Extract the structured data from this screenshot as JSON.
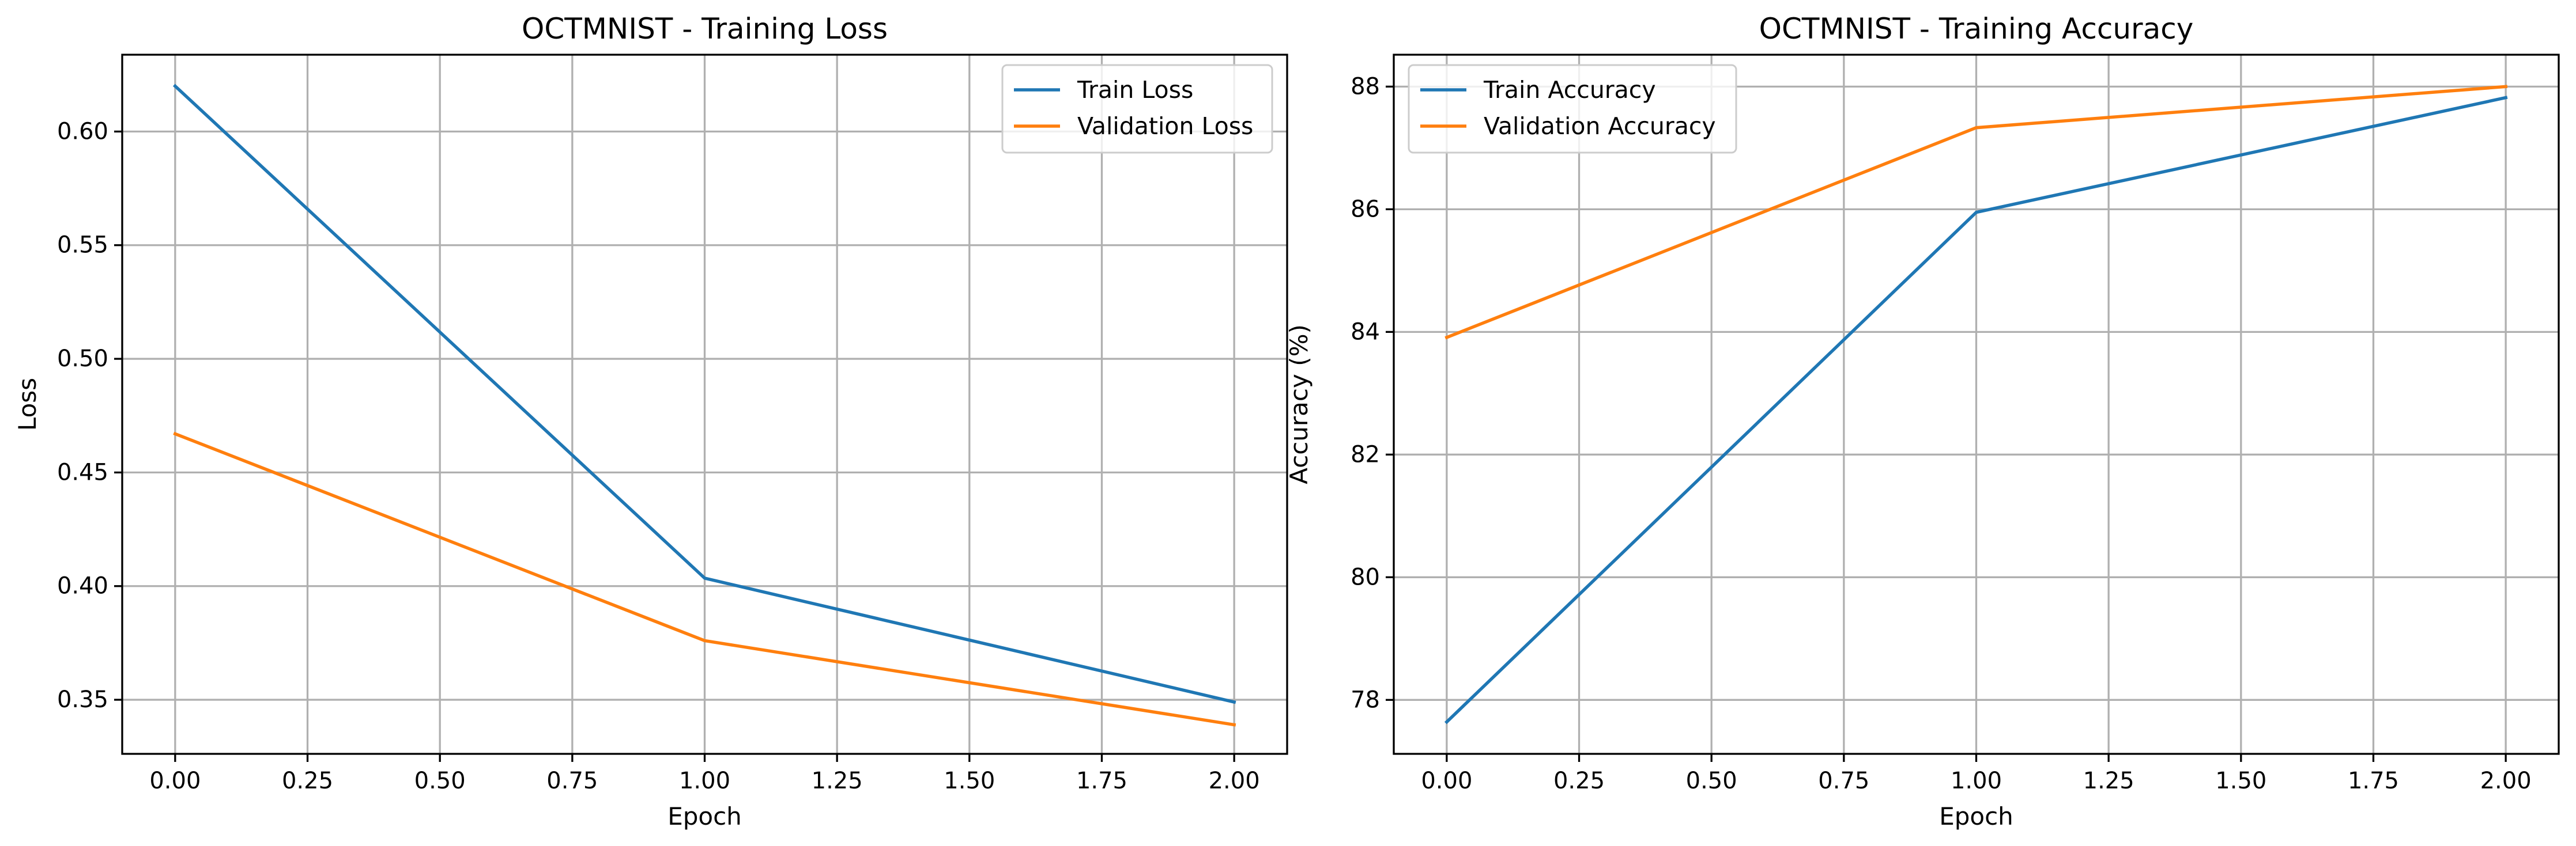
{
  "chart_data": [
    {
      "type": "line",
      "title": "OCTMNIST - Training Loss",
      "xlabel": "Epoch",
      "ylabel": "Loss",
      "xlim": [
        -0.1,
        2.1
      ],
      "ylim": [
        0.3262,
        0.6338
      ],
      "xticks": [
        0.0,
        0.25,
        0.5,
        0.75,
        1.0,
        1.25,
        1.5,
        1.75,
        2.0
      ],
      "xtick_labels": [
        "0.00",
        "0.25",
        "0.50",
        "0.75",
        "1.00",
        "1.25",
        "1.50",
        "1.75",
        "2.00"
      ],
      "yticks": [
        0.35,
        0.4,
        0.45,
        0.5,
        0.55,
        0.6
      ],
      "ytick_labels": [
        "0.35",
        "0.40",
        "0.45",
        "0.50",
        "0.55",
        "0.60"
      ],
      "grid": true,
      "legend_position": "top-right",
      "x": [
        0,
        1,
        2
      ],
      "series": [
        {
          "name": "Train Loss",
          "color": "#1f77b4",
          "values": [
            0.62,
            0.4035,
            0.349
          ]
        },
        {
          "name": "Validation Loss",
          "color": "#ff7f0e",
          "values": [
            0.467,
            0.376,
            0.339
          ]
        }
      ]
    },
    {
      "type": "line",
      "title": "OCTMNIST - Training Accuracy",
      "xlabel": "Epoch",
      "ylabel": "Accuracy (%)",
      "xlim": [
        -0.1,
        2.1
      ],
      "ylim": [
        77.12,
        88.52
      ],
      "xticks": [
        0.0,
        0.25,
        0.5,
        0.75,
        1.0,
        1.25,
        1.5,
        1.75,
        2.0
      ],
      "xtick_labels": [
        "0.00",
        "0.25",
        "0.50",
        "0.75",
        "1.00",
        "1.25",
        "1.50",
        "1.75",
        "2.00"
      ],
      "yticks": [
        78,
        80,
        82,
        84,
        86,
        88
      ],
      "ytick_labels": [
        "78",
        "80",
        "82",
        "84",
        "86",
        "88"
      ],
      "grid": true,
      "legend_position": "top-left",
      "x": [
        0,
        1,
        2
      ],
      "series": [
        {
          "name": "Train Accuracy",
          "color": "#1f77b4",
          "values": [
            77.64,
            85.95,
            87.82
          ]
        },
        {
          "name": "Validation Accuracy",
          "color": "#ff7f0e",
          "values": [
            83.91,
            87.33,
            88.0
          ]
        }
      ]
    }
  ]
}
